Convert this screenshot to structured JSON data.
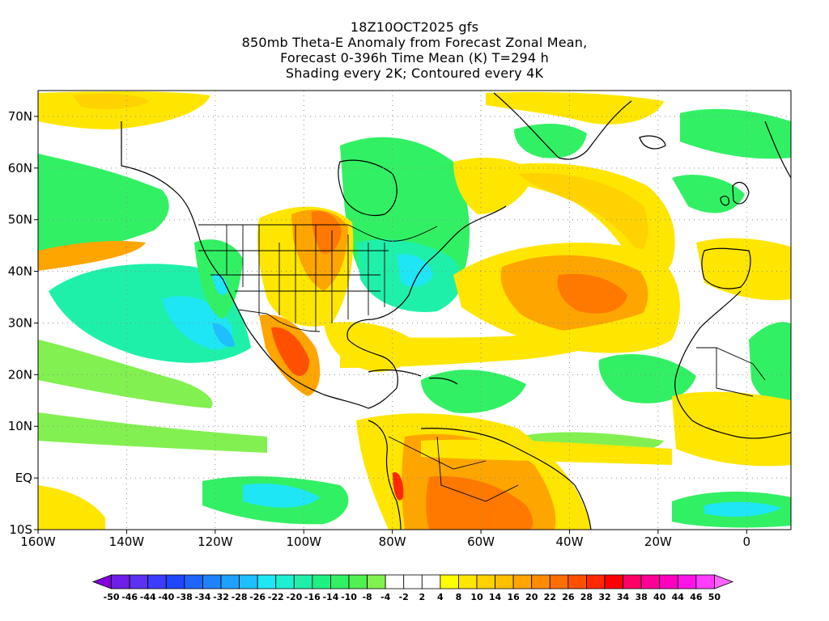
{
  "title": {
    "line1": "18Z10OCT2025 gfs",
    "line2": "850mb Theta-E Anomaly from Forecast Zonal Mean,",
    "line3": "Forecast 0-396h Time Mean (K) T=294 h",
    "line4": "Shading every 2K; Contoured every 4K"
  },
  "axes": {
    "lon_range": [
      -160,
      10
    ],
    "lat_range": [
      -10,
      75
    ],
    "x_ticks": [
      {
        "value": -160,
        "label": "160W"
      },
      {
        "value": -140,
        "label": "140W"
      },
      {
        "value": -120,
        "label": "120W"
      },
      {
        "value": -100,
        "label": "100W"
      },
      {
        "value": -80,
        "label": "80W"
      },
      {
        "value": -60,
        "label": "60W"
      },
      {
        "value": -40,
        "label": "40W"
      },
      {
        "value": -20,
        "label": "20W"
      },
      {
        "value": 0,
        "label": "0"
      }
    ],
    "y_ticks": [
      {
        "value": -10,
        "label": "10S"
      },
      {
        "value": 0,
        "label": "EQ"
      },
      {
        "value": 10,
        "label": "10N"
      },
      {
        "value": 20,
        "label": "20N"
      },
      {
        "value": 30,
        "label": "30N"
      },
      {
        "value": 40,
        "label": "40N"
      },
      {
        "value": 50,
        "label": "50N"
      },
      {
        "value": 60,
        "label": "60N"
      },
      {
        "value": 70,
        "label": "70N"
      }
    ],
    "grid": true
  },
  "colorbar": {
    "labels": [
      "-50",
      "-46",
      "-44",
      "-40",
      "-38",
      "-34",
      "-32",
      "-28",
      "-26",
      "-22",
      "-20",
      "-16",
      "-14",
      "-10",
      "-8",
      "-4",
      "-2",
      "2",
      "4",
      "8",
      "10",
      "14",
      "16",
      "20",
      "22",
      "26",
      "28",
      "32",
      "34",
      "38",
      "40",
      "44",
      "46",
      "50"
    ],
    "colors": [
      "#8200dc",
      "#6e1ee6",
      "#5a32f0",
      "#3c3cff",
      "#1e46ff",
      "#1e64ff",
      "#1e82ff",
      "#1ea0ff",
      "#1ebeff",
      "#1ee6f5",
      "#1ef0d2",
      "#1ef0aa",
      "#1ef082",
      "#32f064",
      "#50f050",
      "#82f050",
      "#ffffff",
      "#ffffff",
      "#ffffff",
      "#ffff00",
      "#ffe600",
      "#ffd200",
      "#ffbe00",
      "#ffa500",
      "#ff8c00",
      "#ff6e00",
      "#ff5000",
      "#ff2800",
      "#ff0000",
      "#ff0064",
      "#ff0096",
      "#ff00be",
      "#ff14e6",
      "#ff3cff",
      "#ff64ff"
    ]
  },
  "fields": {
    "colors": {
      "background": "#ffffff",
      "yellow": "#ffe600",
      "gold": "#ffd200",
      "orange": "#ffa500",
      "dark_orange": "#ff7800",
      "red_orange": "#ff5000",
      "red": "#ff2800",
      "green": "#32f064",
      "lime": "#82f050",
      "aqua_green": "#1ef0aa",
      "cyan": "#1ee6f5",
      "sky": "#1ebeff",
      "coast": "#000000"
    }
  }
}
